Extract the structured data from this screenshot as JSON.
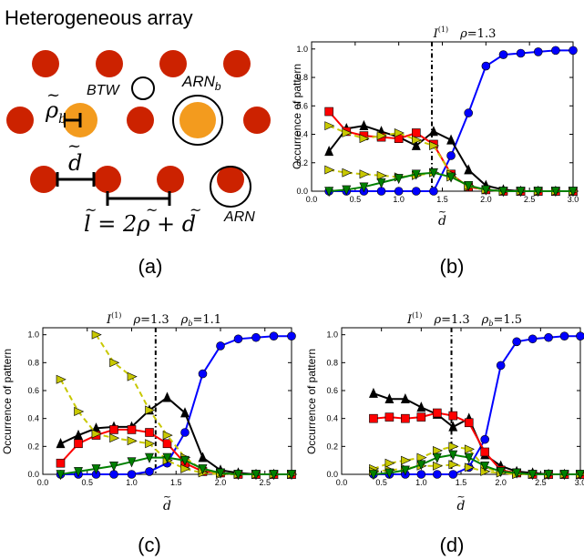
{
  "panel_a": {
    "title": "Heterogeneous array",
    "label": "(a)",
    "btw_label": "BTW",
    "arnb_label": "ARN",
    "arnb_sub": "b",
    "arn_label": "ARN",
    "rho_b_symbol": "ρ",
    "rho_b_sub": "b",
    "d_symbol": "d",
    "formula": "l = 2ρ + d",
    "colors": {
      "red": "#cc2200",
      "orange": "#f39b1e"
    }
  },
  "panel_labels": {
    "b": "(b)",
    "c": "(c)",
    "d": "(d)"
  },
  "chart_data": [
    {
      "id": "b",
      "type": "line",
      "title": "I(1)  ρ = 1.3",
      "title_parts": {
        "I": "I",
        "sup": "(1)",
        "rho": "ρ",
        "eq": "=1.3",
        "rhob": "",
        "eqb": ""
      },
      "ylabel": "Occurrence of pattern",
      "xlabel": "d",
      "xlim": [
        0.0,
        3.0
      ],
      "ylim": [
        0.0,
        1.05
      ],
      "xticks": [
        "0.0",
        "0.5",
        "1.0",
        "1.5",
        "2.0",
        "2.5",
        "3.0"
      ],
      "yticks": [
        "0.0",
        "0.2",
        "0.4",
        "0.6",
        "0.8",
        "1.0"
      ],
      "vline": 1.38,
      "series": [
        {
          "color": "#0000ff",
          "marker": "circle",
          "dashed": false,
          "x": [
            0.2,
            0.4,
            0.6,
            0.8,
            1.0,
            1.2,
            1.4,
            1.6,
            1.8,
            2.0,
            2.2,
            2.4,
            2.6,
            2.8,
            3.0
          ],
          "y": [
            0.0,
            0.0,
            0.0,
            0.0,
            0.0,
            0.0,
            0.0,
            0.25,
            0.55,
            0.88,
            0.96,
            0.97,
            0.98,
            0.99,
            0.99
          ]
        },
        {
          "color": "#000000",
          "marker": "triangle-up",
          "dashed": false,
          "x": [
            0.2,
            0.4,
            0.6,
            0.8,
            1.0,
            1.2,
            1.4,
            1.6,
            1.8,
            2.0,
            2.2,
            2.4,
            2.6,
            2.8,
            3.0
          ],
          "y": [
            0.28,
            0.44,
            0.46,
            0.42,
            0.38,
            0.32,
            0.42,
            0.36,
            0.15,
            0.04,
            0.01,
            0.0,
            0.0,
            0.0,
            0.0
          ]
        },
        {
          "color": "#ff0000",
          "marker": "square",
          "dashed": false,
          "x": [
            0.2,
            0.4,
            0.6,
            0.8,
            1.0,
            1.2,
            1.4,
            1.6,
            1.8,
            2.0,
            2.2,
            2.4,
            2.6,
            2.8,
            3.0
          ],
          "y": [
            0.56,
            0.42,
            0.39,
            0.38,
            0.37,
            0.41,
            0.33,
            0.12,
            0.03,
            0.01,
            0.0,
            0.0,
            0.0,
            0.0,
            0.0
          ]
        },
        {
          "color": "#c8c800",
          "marker": "triangle-right",
          "dashed": true,
          "x": [
            0.2,
            0.4,
            0.6,
            0.8,
            1.0,
            1.2,
            1.4,
            1.6,
            1.8,
            2.0,
            2.2,
            2.4,
            2.6,
            2.8,
            3.0
          ],
          "y": [
            0.46,
            0.41,
            0.37,
            0.39,
            0.41,
            0.36,
            0.32,
            0.12,
            0.03,
            0.01,
            0.0,
            0.0,
            0.0,
            0.0,
            0.0
          ]
        },
        {
          "color": "#c8c800",
          "marker": "triangle-right",
          "dashed": true,
          "x": [
            0.2,
            0.4,
            0.6,
            0.8,
            1.0,
            1.2,
            1.4,
            1.6,
            1.8,
            2.0,
            2.2,
            2.4,
            2.6,
            2.8,
            3.0
          ],
          "y": [
            0.15,
            0.13,
            0.12,
            0.11,
            0.1,
            0.11,
            0.13,
            0.1,
            0.04,
            0.01,
            0.0,
            0.0,
            0.0,
            0.0,
            0.0
          ]
        },
        {
          "color": "#008000",
          "marker": "triangle-down",
          "dashed": false,
          "x": [
            0.2,
            0.4,
            0.6,
            0.8,
            1.0,
            1.2,
            1.4,
            1.6,
            1.8,
            2.0,
            2.2,
            2.4,
            2.6,
            2.8,
            3.0
          ],
          "y": [
            0.0,
            0.01,
            0.03,
            0.06,
            0.09,
            0.12,
            0.13,
            0.1,
            0.04,
            0.01,
            0.0,
            0.0,
            0.0,
            0.0,
            0.0
          ]
        }
      ]
    },
    {
      "id": "c",
      "type": "line",
      "title": "I(1)  ρ = 1.3  ρb = 1.1",
      "title_parts": {
        "I": "I",
        "sup": "(1)",
        "rho": "ρ",
        "eq": "=1.3",
        "rhob": "ρ",
        "eqb": "=1.1"
      },
      "ylabel": "Occurrence of pattern",
      "xlabel": "d",
      "xlim": [
        0.0,
        2.8
      ],
      "ylim": [
        0.0,
        1.05
      ],
      "xticks": [
        "0.0",
        "0.5",
        "1.0",
        "1.5",
        "2.0",
        "2.5"
      ],
      "yticks": [
        "0.0",
        "0.2",
        "0.4",
        "0.6",
        "0.8",
        "1.0"
      ],
      "vline": 1.27,
      "series": [
        {
          "color": "#0000ff",
          "marker": "circle",
          "dashed": false,
          "x": [
            0.2,
            0.4,
            0.6,
            0.8,
            1.0,
            1.2,
            1.4,
            1.6,
            1.8,
            2.0,
            2.2,
            2.4,
            2.6,
            2.8
          ],
          "y": [
            0.0,
            0.0,
            0.0,
            0.0,
            0.0,
            0.02,
            0.08,
            0.3,
            0.72,
            0.92,
            0.97,
            0.98,
            0.99,
            0.99
          ]
        },
        {
          "color": "#000000",
          "marker": "triangle-up",
          "dashed": false,
          "x": [
            0.2,
            0.4,
            0.6,
            0.8,
            1.0,
            1.2,
            1.4,
            1.6,
            1.8,
            2.0,
            2.2,
            2.4,
            2.6,
            2.8
          ],
          "y": [
            0.22,
            0.28,
            0.33,
            0.34,
            0.34,
            0.46,
            0.55,
            0.44,
            0.12,
            0.03,
            0.01,
            0.0,
            0.0,
            0.0
          ]
        },
        {
          "color": "#ff0000",
          "marker": "square",
          "dashed": false,
          "x": [
            0.2,
            0.4,
            0.6,
            0.8,
            1.0,
            1.2,
            1.4,
            1.6,
            1.8,
            2.0,
            2.2,
            2.4,
            2.6,
            2.8
          ],
          "y": [
            0.08,
            0.22,
            0.28,
            0.32,
            0.32,
            0.3,
            0.22,
            0.08,
            0.02,
            0.01,
            0.0,
            0.0,
            0.0,
            0.0
          ]
        },
        {
          "color": "#c8c800",
          "marker": "triangle-right",
          "dashed": true,
          "x": [
            0.2,
            0.4,
            0.6,
            0.8,
            1.0,
            1.2,
            1.4,
            1.6,
            1.8,
            2.0,
            2.2,
            2.4,
            2.6,
            2.8
          ],
          "y": [
            0.68,
            0.45,
            0.29,
            0.26,
            0.24,
            0.22,
            0.1,
            0.04,
            0.01,
            0.0,
            0.0,
            0.0,
            0.0,
            0.0
          ]
        },
        {
          "color": "#c8c800",
          "marker": "triangle-right",
          "dashed": true,
          "x": [
            0.6,
            0.8,
            1.0,
            1.2,
            1.4,
            1.6,
            1.8,
            2.0,
            2.2,
            2.4,
            2.6,
            2.8
          ],
          "y": [
            1.0,
            0.8,
            0.7,
            0.46,
            0.28,
            0.12,
            0.03,
            0.01,
            0.0,
            0.0,
            0.0,
            0.0
          ]
        },
        {
          "color": "#008000",
          "marker": "triangle-down",
          "dashed": false,
          "x": [
            0.2,
            0.4,
            0.6,
            0.8,
            1.0,
            1.2,
            1.4,
            1.6,
            1.8,
            2.0,
            2.2,
            2.4,
            2.6,
            2.8
          ],
          "y": [
            0.0,
            0.02,
            0.04,
            0.06,
            0.09,
            0.12,
            0.12,
            0.1,
            0.04,
            0.01,
            0.0,
            0.0,
            0.0,
            0.0
          ]
        }
      ]
    },
    {
      "id": "d",
      "type": "line",
      "title": "I(1)  ρ = 1.3  ρb = 1.5",
      "title_parts": {
        "I": "I",
        "sup": "(1)",
        "rho": "ρ",
        "eq": "=1.3",
        "rhob": "ρ",
        "eqb": "=1.5"
      },
      "ylabel": "Occurrence of pattern",
      "xlabel": "d",
      "xlim": [
        0.0,
        3.0
      ],
      "ylim": [
        0.0,
        1.05
      ],
      "xticks": [
        "0.0",
        "0.5",
        "1.0",
        "1.5",
        "2.0",
        "2.5",
        "3.0"
      ],
      "yticks": [
        "0.0",
        "0.2",
        "0.4",
        "0.6",
        "0.8",
        "1.0"
      ],
      "vline": 1.38,
      "series": [
        {
          "color": "#0000ff",
          "marker": "circle",
          "dashed": false,
          "x": [
            0.4,
            0.6,
            0.8,
            1.0,
            1.2,
            1.4,
            1.6,
            1.8,
            2.0,
            2.2,
            2.4,
            2.6,
            2.8,
            3.0
          ],
          "y": [
            0.0,
            0.0,
            0.0,
            0.0,
            0.0,
            0.0,
            0.05,
            0.25,
            0.78,
            0.95,
            0.97,
            0.98,
            0.99,
            0.99
          ]
        },
        {
          "color": "#000000",
          "marker": "triangle-up",
          "dashed": false,
          "x": [
            0.4,
            0.6,
            0.8,
            1.0,
            1.2,
            1.4,
            1.6,
            1.8,
            2.0,
            2.2,
            2.4,
            2.6,
            2.8,
            3.0
          ],
          "y": [
            0.58,
            0.54,
            0.54,
            0.48,
            0.43,
            0.34,
            0.4,
            0.14,
            0.06,
            0.02,
            0.01,
            0.0,
            0.0,
            0.0
          ]
        },
        {
          "color": "#ff0000",
          "marker": "square",
          "dashed": false,
          "x": [
            0.4,
            0.6,
            0.8,
            1.0,
            1.2,
            1.4,
            1.6,
            1.8,
            2.0,
            2.2,
            2.4,
            2.6,
            2.8,
            3.0
          ],
          "y": [
            0.4,
            0.41,
            0.4,
            0.41,
            0.44,
            0.42,
            0.37,
            0.16,
            0.03,
            0.01,
            0.0,
            0.0,
            0.0,
            0.0
          ]
        },
        {
          "color": "#c8c800",
          "marker": "triangle-right",
          "dashed": true,
          "x": [
            0.4,
            0.6,
            0.8,
            1.0,
            1.2,
            1.4,
            1.6,
            1.8,
            2.0,
            2.2,
            2.4,
            2.6,
            2.8,
            3.0
          ],
          "y": [
            0.04,
            0.08,
            0.1,
            0.12,
            0.17,
            0.2,
            0.18,
            0.05,
            0.01,
            0.0,
            0.0,
            0.0,
            0.0,
            0.0
          ]
        },
        {
          "color": "#c8c800",
          "marker": "triangle-right",
          "dashed": true,
          "x": [
            0.4,
            0.6,
            0.8,
            1.0,
            1.2,
            1.4,
            1.6,
            1.8,
            2.0,
            2.2,
            2.4,
            2.6,
            2.8,
            3.0
          ],
          "y": [
            0.02,
            0.03,
            0.04,
            0.06,
            0.06,
            0.07,
            0.05,
            0.02,
            0.01,
            0.0,
            0.0,
            0.0,
            0.0,
            0.0
          ]
        },
        {
          "color": "#008000",
          "marker": "triangle-down",
          "dashed": false,
          "x": [
            0.4,
            0.6,
            0.8,
            1.0,
            1.2,
            1.4,
            1.6,
            1.8,
            2.0,
            2.2,
            2.4,
            2.6,
            2.8,
            3.0
          ],
          "y": [
            0.0,
            0.01,
            0.03,
            0.07,
            0.12,
            0.14,
            0.12,
            0.06,
            0.02,
            0.01,
            0.0,
            0.0,
            0.0,
            0.0
          ]
        }
      ]
    }
  ]
}
